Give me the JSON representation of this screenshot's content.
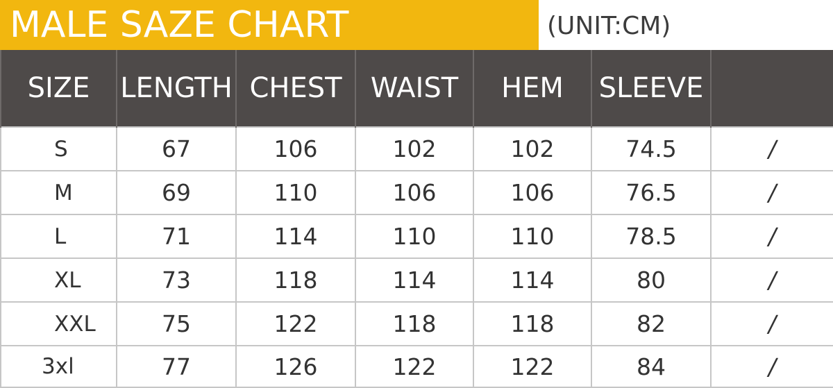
{
  "title": "MALE SAZE CHART",
  "unit": "(UNIT:CM)",
  "colors": {
    "title_background": "#f2b70f",
    "title_text": "#ffffff",
    "header_background": "#4e4a49",
    "header_text": "#ffffff",
    "grid_lines": "#c6c6c6"
  },
  "table": {
    "headers": [
      "SIZE",
      "LENGTH",
      "CHEST",
      "WAIST",
      "HEM",
      "SLEEVE",
      ""
    ],
    "rows": [
      [
        "S",
        "67",
        "106",
        "102",
        "102",
        "74.5",
        "/"
      ],
      [
        "M",
        "69",
        "110",
        "106",
        "106",
        "76.5",
        "/"
      ],
      [
        "L",
        "71",
        "114",
        "110",
        "110",
        "78.5",
        "/"
      ],
      [
        "XL",
        "73",
        "118",
        "114",
        "114",
        "80",
        "/"
      ],
      [
        "XXL",
        "75",
        "122",
        "118",
        "118",
        "82",
        "/"
      ],
      [
        "3xl",
        "77",
        "126",
        "122",
        "122",
        "84",
        "/"
      ]
    ]
  }
}
